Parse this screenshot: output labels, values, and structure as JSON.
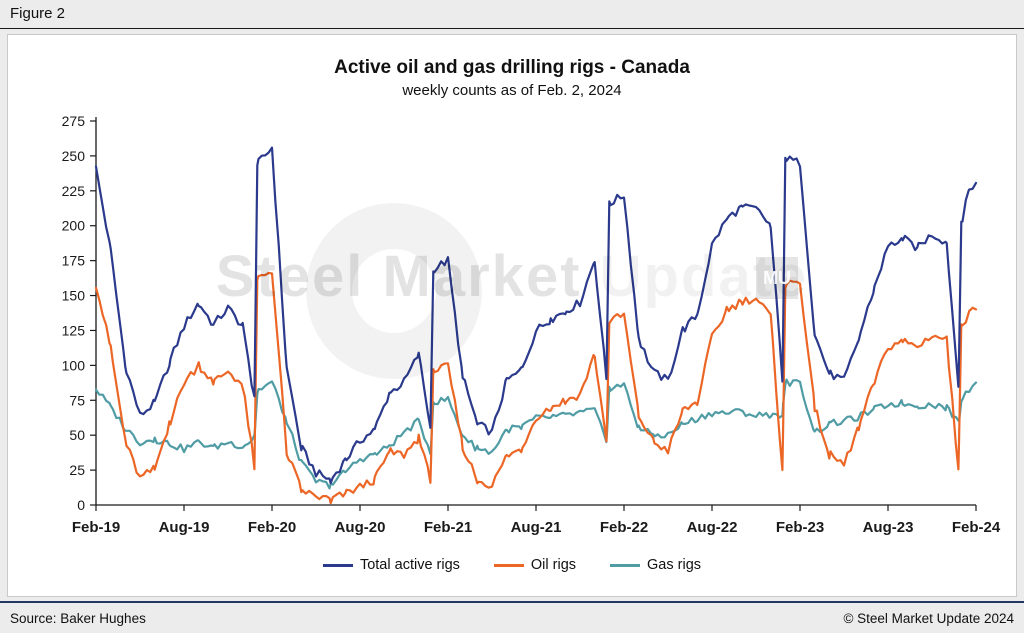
{
  "figure_label": "Figure 2",
  "title": "Active oil and gas drilling rigs - Canada",
  "subtitle": "weekly counts as of Feb. 2, 2024",
  "watermark": {
    "primary": "Steel Market",
    "secondary": " Update",
    "badge": "MU"
  },
  "footer": {
    "source": "Source: Baker Hughes",
    "copyright": "© Steel Market Update 2024"
  },
  "chart_data": {
    "type": "line",
    "title": "Active oil and gas drilling rigs - Canada",
    "subtitle": "weekly counts as of Feb. 2, 2024",
    "xlabel": "",
    "ylabel": "",
    "x_unit": "months since Feb-2019 (weekly series)",
    "xlim": [
      0,
      60
    ],
    "ylim": [
      0,
      275
    ],
    "y_ticks": [
      0,
      25,
      50,
      75,
      100,
      125,
      150,
      175,
      200,
      225,
      250,
      275
    ],
    "x_tick_positions": [
      0,
      6,
      12,
      18,
      24,
      30,
      36,
      42,
      48,
      54,
      60
    ],
    "x_tick_labels": [
      "Feb-19",
      "Aug-19",
      "Feb-20",
      "Aug-20",
      "Feb-21",
      "Aug-21",
      "Feb-22",
      "Aug-22",
      "Feb-23",
      "Aug-23",
      "Feb-24"
    ],
    "grid": false,
    "legend_position": "bottom",
    "series": [
      {
        "name": "Total active rigs",
        "color": "#2B3A8C",
        "weekly_noise": 3,
        "points": [
          [
            0,
            241
          ],
          [
            1,
            182
          ],
          [
            2,
            100
          ],
          [
            3,
            64
          ],
          [
            4,
            73
          ],
          [
            5,
            102
          ],
          [
            6,
            128
          ],
          [
            7,
            145
          ],
          [
            8,
            129
          ],
          [
            9,
            141
          ],
          [
            10,
            128
          ],
          [
            10.8,
            76
          ],
          [
            11,
            244
          ],
          [
            12,
            256
          ],
          [
            13,
            98
          ],
          [
            14,
            41
          ],
          [
            15,
            23
          ],
          [
            16,
            18
          ],
          [
            17,
            32
          ],
          [
            18,
            46
          ],
          [
            19,
            54
          ],
          [
            20,
            80
          ],
          [
            21,
            88
          ],
          [
            22,
            108
          ],
          [
            22.8,
            56
          ],
          [
            23,
            169
          ],
          [
            24,
            175
          ],
          [
            25,
            92
          ],
          [
            26,
            58
          ],
          [
            27,
            52
          ],
          [
            28,
            89
          ],
          [
            29,
            96
          ],
          [
            30,
            125
          ],
          [
            31,
            133
          ],
          [
            32,
            139
          ],
          [
            33,
            145
          ],
          [
            34,
            176
          ],
          [
            34.8,
            90
          ],
          [
            35,
            216
          ],
          [
            36,
            222
          ],
          [
            37,
            119
          ],
          [
            38,
            95
          ],
          [
            39,
            89
          ],
          [
            40,
            125
          ],
          [
            41,
            136
          ],
          [
            42,
            186
          ],
          [
            43,
            205
          ],
          [
            44,
            213
          ],
          [
            45,
            212
          ],
          [
            46,
            200
          ],
          [
            46.8,
            90
          ],
          [
            47,
            248
          ],
          [
            48,
            245
          ],
          [
            49,
            122
          ],
          [
            50,
            94
          ],
          [
            51,
            89
          ],
          [
            52,
            119
          ],
          [
            53,
            154
          ],
          [
            54,
            185
          ],
          [
            55,
            191
          ],
          [
            56,
            184
          ],
          [
            57,
            194
          ],
          [
            58,
            188
          ],
          [
            58.8,
            85
          ],
          [
            59,
            200
          ],
          [
            59.5,
            225
          ],
          [
            60,
            231
          ]
        ]
      },
      {
        "name": "Oil rigs",
        "color": "#EC6626",
        "weekly_noise": 3,
        "points": [
          [
            0,
            158
          ],
          [
            1,
            112
          ],
          [
            2,
            45
          ],
          [
            3,
            19
          ],
          [
            4,
            26
          ],
          [
            5,
            58
          ],
          [
            6,
            88
          ],
          [
            7,
            100
          ],
          [
            8,
            88
          ],
          [
            9,
            96
          ],
          [
            10,
            86
          ],
          [
            10.8,
            28
          ],
          [
            11,
            162
          ],
          [
            12,
            168
          ],
          [
            13,
            38
          ],
          [
            14,
            11
          ],
          [
            15,
            6
          ],
          [
            16,
            4
          ],
          [
            17,
            8
          ],
          [
            18,
            13
          ],
          [
            19,
            18
          ],
          [
            20,
            38
          ],
          [
            21,
            36
          ],
          [
            22,
            48
          ],
          [
            22.8,
            18
          ],
          [
            23,
            96
          ],
          [
            24,
            99
          ],
          [
            25,
            42
          ],
          [
            26,
            18
          ],
          [
            27,
            14
          ],
          [
            28,
            35
          ],
          [
            29,
            40
          ],
          [
            30,
            63
          ],
          [
            31,
            70
          ],
          [
            32,
            75
          ],
          [
            33,
            79
          ],
          [
            34,
            108
          ],
          [
            34.8,
            45
          ],
          [
            35,
            132
          ],
          [
            36,
            136
          ],
          [
            37,
            64
          ],
          [
            38,
            45
          ],
          [
            39,
            39
          ],
          [
            40,
            67
          ],
          [
            41,
            74
          ],
          [
            42,
            120
          ],
          [
            43,
            139
          ],
          [
            44,
            146
          ],
          [
            45,
            148
          ],
          [
            46,
            135
          ],
          [
            46.8,
            25
          ],
          [
            47,
            158
          ],
          [
            48,
            160
          ],
          [
            49,
            70
          ],
          [
            50,
            36
          ],
          [
            51,
            29
          ],
          [
            52,
            56
          ],
          [
            53,
            86
          ],
          [
            54,
            113
          ],
          [
            55,
            118
          ],
          [
            56,
            113
          ],
          [
            57,
            122
          ],
          [
            58,
            118
          ],
          [
            58.8,
            25
          ],
          [
            59,
            130
          ],
          [
            60,
            142
          ]
        ]
      },
      {
        "name": "Gas rigs",
        "color": "#509CA4",
        "weekly_noise": 2.5,
        "points": [
          [
            0,
            83
          ],
          [
            1,
            70
          ],
          [
            2,
            55
          ],
          [
            3,
            45
          ],
          [
            4,
            47
          ],
          [
            5,
            44
          ],
          [
            6,
            40
          ],
          [
            7,
            45
          ],
          [
            8,
            41
          ],
          [
            9,
            45
          ],
          [
            10,
            42
          ],
          [
            10.8,
            48
          ],
          [
            11,
            82
          ],
          [
            12,
            88
          ],
          [
            13,
            60
          ],
          [
            14,
            30
          ],
          [
            15,
            17
          ],
          [
            16,
            14
          ],
          [
            17,
            24
          ],
          [
            18,
            33
          ],
          [
            19,
            36
          ],
          [
            20,
            42
          ],
          [
            21,
            52
          ],
          [
            22,
            60
          ],
          [
            22.8,
            38
          ],
          [
            23,
            73
          ],
          [
            24,
            76
          ],
          [
            25,
            50
          ],
          [
            26,
            40
          ],
          [
            27,
            38
          ],
          [
            28,
            54
          ],
          [
            29,
            56
          ],
          [
            30,
            62
          ],
          [
            31,
            63
          ],
          [
            32,
            64
          ],
          [
            33,
            66
          ],
          [
            34,
            68
          ],
          [
            34.8,
            45
          ],
          [
            35,
            84
          ],
          [
            36,
            86
          ],
          [
            37,
            55
          ],
          [
            38,
            50
          ],
          [
            39,
            50
          ],
          [
            40,
            58
          ],
          [
            41,
            62
          ],
          [
            42,
            66
          ],
          [
            43,
            66
          ],
          [
            44,
            67
          ],
          [
            45,
            64
          ],
          [
            46,
            65
          ],
          [
            46.8,
            65
          ],
          [
            47,
            88
          ],
          [
            48,
            87
          ],
          [
            49,
            52
          ],
          [
            50,
            58
          ],
          [
            51,
            60
          ],
          [
            52,
            63
          ],
          [
            53,
            68
          ],
          [
            54,
            72
          ],
          [
            55,
            73
          ],
          [
            56,
            71
          ],
          [
            57,
            72
          ],
          [
            58,
            70
          ],
          [
            58.8,
            58
          ],
          [
            59,
            75
          ],
          [
            60,
            90
          ]
        ]
      }
    ]
  }
}
